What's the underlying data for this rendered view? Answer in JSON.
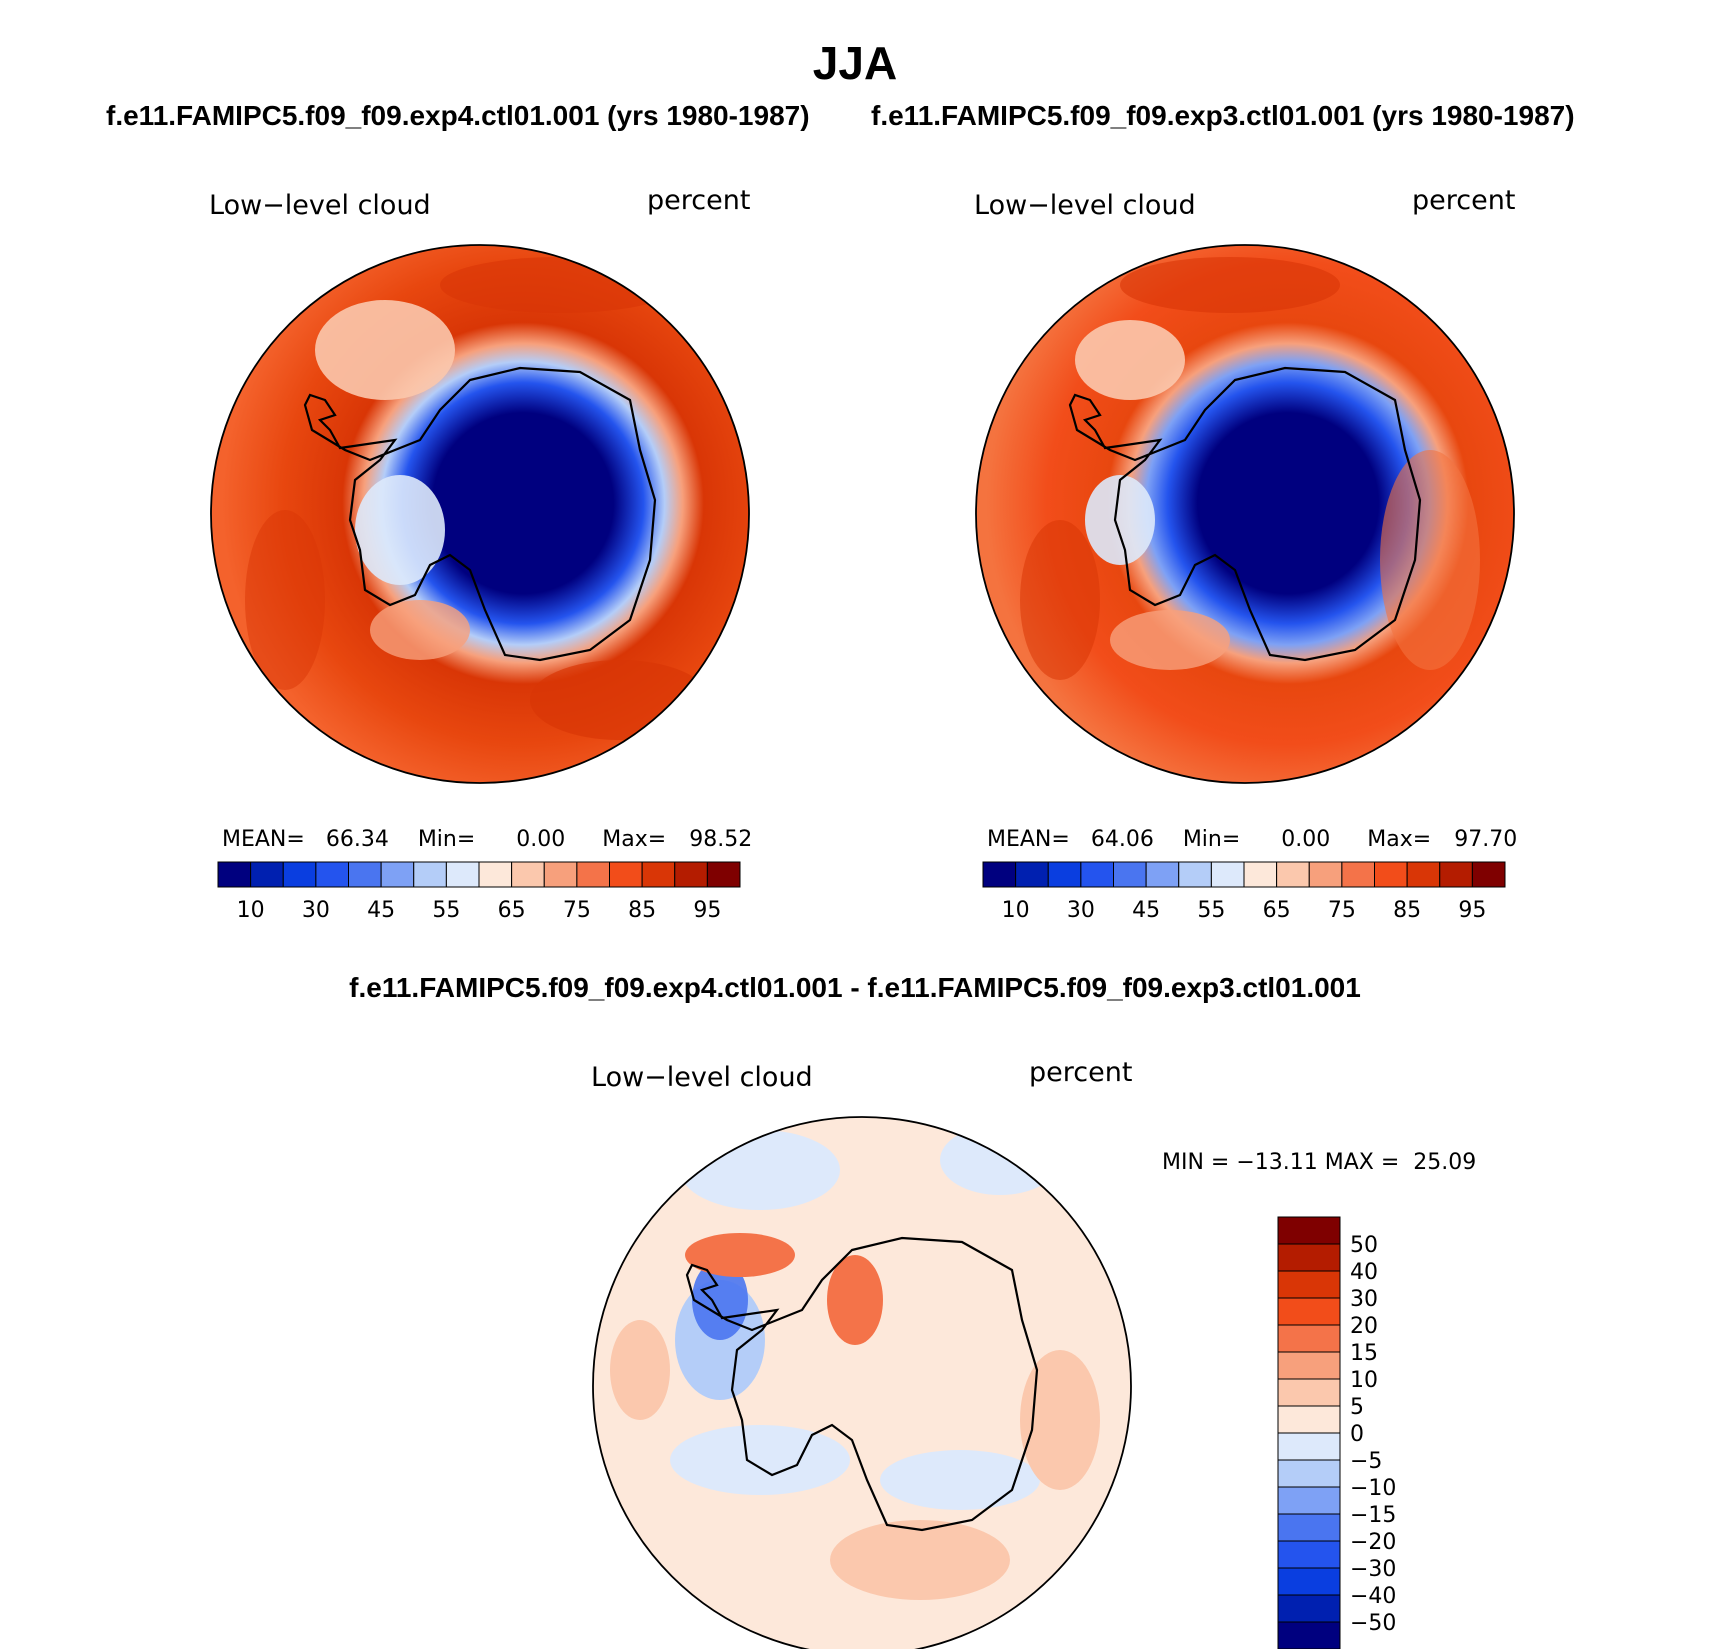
{
  "title": "JJA",
  "panels": [
    {
      "case_title": "f.e11.FAMIPC5.f09_f09.exp4.ctl01.001 (yrs 1980-1987)",
      "variable": "Low−level cloud",
      "units": "percent",
      "stats": {
        "mean_label": "MEAN=",
        "mean": "66.34",
        "min_label": "Min=",
        "min": "0.00",
        "max_label": "Max=",
        "max": "98.52"
      }
    },
    {
      "case_title": "f.e11.FAMIPC5.f09_f09.exp3.ctl01.001 (yrs 1980-1987)",
      "variable": "Low−level cloud",
      "units": "percent",
      "stats": {
        "mean_label": "MEAN=",
        "mean": "64.06",
        "min_label": "Min=",
        "min": "0.00",
        "max_label": "Max=",
        "max": "97.70"
      }
    }
  ],
  "diff": {
    "title": "f.e11.FAMIPC5.f09_f09.exp4.ctl01.001 - f.e11.FAMIPC5.f09_f09.exp3.ctl01.001",
    "variable": "Low−level cloud",
    "units": "percent",
    "stats": "MIN = −13.11 MAX =  25.09"
  },
  "colorbar_abs": {
    "colors": [
      "#00007f",
      "#0020b0",
      "#0a3ee0",
      "#2454ee",
      "#4a75f0",
      "#7ea1f5",
      "#b4cdf8",
      "#dde9fb",
      "#fde8da",
      "#fbc8ad",
      "#f7a07c",
      "#f47349",
      "#f24d1a",
      "#d93606",
      "#b41c00",
      "#7f0000"
    ],
    "labels": [
      "10",
      "30",
      "45",
      "55",
      "65",
      "75",
      "85",
      "95"
    ]
  },
  "colorbar_diff": {
    "colors": [
      "#7f0000",
      "#b41c00",
      "#d93606",
      "#f24d1a",
      "#f47349",
      "#f7a07c",
      "#fbc8ad",
      "#fde8da",
      "#dde9fb",
      "#b4cdf8",
      "#7ea1f5",
      "#4a75f0",
      "#2454ee",
      "#0a3ee0",
      "#0020b0",
      "#00007f"
    ],
    "labels": [
      "50",
      "40",
      "30",
      "20",
      "15",
      "10",
      "5",
      "0",
      "−5",
      "−10",
      "−15",
      "−20",
      "−30",
      "−40",
      "−50"
    ]
  }
}
